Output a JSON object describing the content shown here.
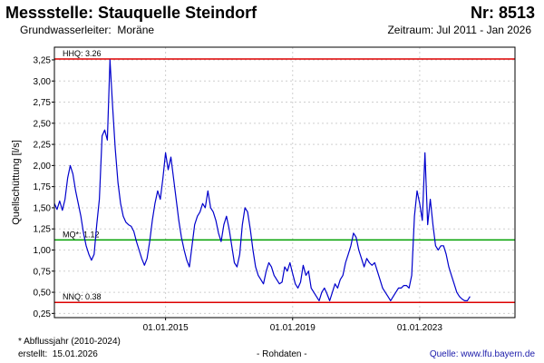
{
  "header": {
    "title": "Messstelle: Stauquelle Steindorf",
    "number": "Nr: 8513",
    "aquifer_label": "Grundwasserleiter:",
    "aquifer_value": "Moräne",
    "period": "Zeitraum: Jul 2011 - Jan 2026"
  },
  "footer": {
    "note": "* Abflussjahr (2010-2024)",
    "created_label": "erstellt:",
    "created_date": "15.01.2026",
    "data_type": "- Rohdaten -",
    "source": "Quelle: www.lfu.bayern.de"
  },
  "chart_data": {
    "type": "line",
    "ylabel": "Quellschüttung [l/s]",
    "xlim": [
      "2011-07",
      "2026-01"
    ],
    "ylim": [
      0.2,
      3.4
    ],
    "y_ticks": [
      "0,25",
      "0,50",
      "0,75",
      "1,00",
      "1,25",
      "1,50",
      "1,75",
      "2,00",
      "2,25",
      "2,50",
      "2,75",
      "3,00",
      "3,25"
    ],
    "x_ticks": [
      "01.01.2015",
      "01.01.2019",
      "01.01.2023"
    ],
    "grid": true,
    "reference_lines": [
      {
        "label": "HHQ: 3.26",
        "value": 3.26,
        "color": "#dd0000"
      },
      {
        "label": "MQ*: 1.12",
        "value": 1.12,
        "color": "#00a000"
      },
      {
        "label": "NNQ: 0.38",
        "value": 0.38,
        "color": "#dd0000"
      }
    ],
    "series": [
      {
        "color": "#0000cc",
        "points": [
          [
            "2011-07",
            1.55
          ],
          [
            "2011-08",
            1.48
          ],
          [
            "2011-09",
            1.58
          ],
          [
            "2011-10",
            1.47
          ],
          [
            "2011-11",
            1.6
          ],
          [
            "2011-12",
            1.85
          ],
          [
            "2012-01",
            2.0
          ],
          [
            "2012-02",
            1.9
          ],
          [
            "2012-03",
            1.7
          ],
          [
            "2012-04",
            1.55
          ],
          [
            "2012-05",
            1.4
          ],
          [
            "2012-06",
            1.2
          ],
          [
            "2012-07",
            1.05
          ],
          [
            "2012-08",
            0.95
          ],
          [
            "2012-09",
            0.88
          ],
          [
            "2012-10",
            0.95
          ],
          [
            "2012-11",
            1.3
          ],
          [
            "2012-12",
            1.6
          ],
          [
            "2013-01",
            2.35
          ],
          [
            "2013-02",
            2.42
          ],
          [
            "2013-03",
            2.3
          ],
          [
            "2013-04",
            3.25
          ],
          [
            "2013-05",
            2.7
          ],
          [
            "2013-06",
            2.2
          ],
          [
            "2013-07",
            1.8
          ],
          [
            "2013-08",
            1.55
          ],
          [
            "2013-09",
            1.4
          ],
          [
            "2013-10",
            1.33
          ],
          [
            "2013-11",
            1.3
          ],
          [
            "2013-12",
            1.28
          ],
          [
            "2014-01",
            1.22
          ],
          [
            "2014-02",
            1.1
          ],
          [
            "2014-03",
            1.0
          ],
          [
            "2014-04",
            0.9
          ],
          [
            "2014-05",
            0.82
          ],
          [
            "2014-06",
            0.9
          ],
          [
            "2014-07",
            1.1
          ],
          [
            "2014-08",
            1.35
          ],
          [
            "2014-09",
            1.55
          ],
          [
            "2014-10",
            1.7
          ],
          [
            "2014-11",
            1.6
          ],
          [
            "2014-12",
            1.85
          ],
          [
            "2015-01",
            2.15
          ],
          [
            "2015-02",
            1.95
          ],
          [
            "2015-03",
            2.1
          ],
          [
            "2015-04",
            1.85
          ],
          [
            "2015-05",
            1.6
          ],
          [
            "2015-06",
            1.35
          ],
          [
            "2015-07",
            1.15
          ],
          [
            "2015-08",
            1.0
          ],
          [
            "2015-09",
            0.88
          ],
          [
            "2015-10",
            0.8
          ],
          [
            "2015-11",
            1.05
          ],
          [
            "2015-12",
            1.3
          ],
          [
            "2016-01",
            1.4
          ],
          [
            "2016-02",
            1.45
          ],
          [
            "2016-03",
            1.55
          ],
          [
            "2016-04",
            1.5
          ],
          [
            "2016-05",
            1.7
          ],
          [
            "2016-06",
            1.5
          ],
          [
            "2016-07",
            1.45
          ],
          [
            "2016-08",
            1.35
          ],
          [
            "2016-09",
            1.2
          ],
          [
            "2016-10",
            1.1
          ],
          [
            "2016-11",
            1.3
          ],
          [
            "2016-12",
            1.4
          ],
          [
            "2017-01",
            1.25
          ],
          [
            "2017-02",
            1.05
          ],
          [
            "2017-03",
            0.85
          ],
          [
            "2017-04",
            0.8
          ],
          [
            "2017-05",
            0.95
          ],
          [
            "2017-06",
            1.3
          ],
          [
            "2017-07",
            1.5
          ],
          [
            "2017-08",
            1.45
          ],
          [
            "2017-09",
            1.25
          ],
          [
            "2017-10",
            1.0
          ],
          [
            "2017-11",
            0.8
          ],
          [
            "2017-12",
            0.7
          ],
          [
            "2018-01",
            0.65
          ],
          [
            "2018-02",
            0.6
          ],
          [
            "2018-03",
            0.75
          ],
          [
            "2018-04",
            0.85
          ],
          [
            "2018-05",
            0.8
          ],
          [
            "2018-06",
            0.7
          ],
          [
            "2018-07",
            0.65
          ],
          [
            "2018-08",
            0.6
          ],
          [
            "2018-09",
            0.62
          ],
          [
            "2018-10",
            0.8
          ],
          [
            "2018-11",
            0.75
          ],
          [
            "2018-12",
            0.85
          ],
          [
            "2019-01",
            0.72
          ],
          [
            "2019-02",
            0.6
          ],
          [
            "2019-03",
            0.55
          ],
          [
            "2019-04",
            0.62
          ],
          [
            "2019-05",
            0.82
          ],
          [
            "2019-06",
            0.7
          ],
          [
            "2019-07",
            0.75
          ],
          [
            "2019-08",
            0.55
          ],
          [
            "2019-09",
            0.5
          ],
          [
            "2019-10",
            0.45
          ],
          [
            "2019-11",
            0.4
          ],
          [
            "2019-12",
            0.5
          ],
          [
            "2020-01",
            0.55
          ],
          [
            "2020-02",
            0.48
          ],
          [
            "2020-03",
            0.4
          ],
          [
            "2020-04",
            0.5
          ],
          [
            "2020-05",
            0.6
          ],
          [
            "2020-06",
            0.55
          ],
          [
            "2020-07",
            0.65
          ],
          [
            "2020-08",
            0.7
          ],
          [
            "2020-09",
            0.85
          ],
          [
            "2020-10",
            0.95
          ],
          [
            "2020-11",
            1.05
          ],
          [
            "2020-12",
            1.2
          ],
          [
            "2021-01",
            1.15
          ],
          [
            "2021-02",
            1.0
          ],
          [
            "2021-03",
            0.9
          ],
          [
            "2021-04",
            0.8
          ],
          [
            "2021-05",
            0.9
          ],
          [
            "2021-06",
            0.85
          ],
          [
            "2021-07",
            0.82
          ],
          [
            "2021-08",
            0.85
          ],
          [
            "2021-09",
            0.75
          ],
          [
            "2021-10",
            0.65
          ],
          [
            "2021-11",
            0.55
          ],
          [
            "2021-12",
            0.5
          ],
          [
            "2022-01",
            0.45
          ],
          [
            "2022-02",
            0.4
          ],
          [
            "2022-03",
            0.45
          ],
          [
            "2022-04",
            0.5
          ],
          [
            "2022-05",
            0.55
          ],
          [
            "2022-06",
            0.55
          ],
          [
            "2022-07",
            0.58
          ],
          [
            "2022-08",
            0.58
          ],
          [
            "2022-09",
            0.55
          ],
          [
            "2022-10",
            0.7
          ],
          [
            "2022-11",
            1.4
          ],
          [
            "2022-12",
            1.7
          ],
          [
            "2023-01",
            1.55
          ],
          [
            "2023-02",
            1.35
          ],
          [
            "2023-03",
            2.15
          ],
          [
            "2023-04",
            1.3
          ],
          [
            "2023-05",
            1.6
          ],
          [
            "2023-06",
            1.3
          ],
          [
            "2023-07",
            1.05
          ],
          [
            "2023-08",
            1.0
          ],
          [
            "2023-09",
            1.05
          ],
          [
            "2023-10",
            1.05
          ],
          [
            "2023-11",
            0.95
          ],
          [
            "2023-12",
            0.8
          ],
          [
            "2024-01",
            0.7
          ],
          [
            "2024-02",
            0.6
          ],
          [
            "2024-03",
            0.5
          ],
          [
            "2024-04",
            0.45
          ],
          [
            "2024-05",
            0.42
          ],
          [
            "2024-06",
            0.4
          ],
          [
            "2024-07",
            0.4
          ],
          [
            "2024-08",
            0.45
          ]
        ]
      }
    ]
  }
}
